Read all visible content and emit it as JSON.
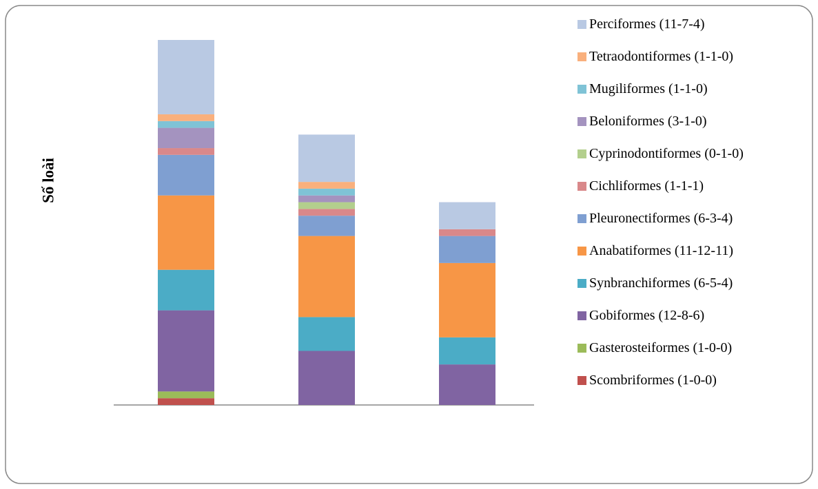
{
  "chart_data": {
    "type": "stacked-bar",
    "ylabel": "Số loài",
    "categories": [
      null,
      null,
      null
    ],
    "series": [
      {
        "name": "Scombriformes (1-0-0)",
        "color": "#c0504d",
        "values": [
          1,
          0,
          0
        ]
      },
      {
        "name": "Gasterosteiformes (1-0-0)",
        "color": "#9bbb59",
        "values": [
          1,
          0,
          0
        ]
      },
      {
        "name": "Gobiformes (12-8-6)",
        "color": "#8064a2",
        "values": [
          12,
          8,
          6
        ]
      },
      {
        "name": "Synbranchiformes (6-5-4)",
        "color": "#4bacc6",
        "values": [
          6,
          5,
          4
        ]
      },
      {
        "name": "Anabatiformes (11-12-11)",
        "color": "#f79646",
        "values": [
          11,
          12,
          11
        ]
      },
      {
        "name": "Pleuronectiformes (6-3-4)",
        "color": "#7f9fd1",
        "values": [
          6,
          3,
          4
        ]
      },
      {
        "name": "Cichliformes (1-1-1)",
        "color": "#d9888a",
        "values": [
          1,
          1,
          1
        ]
      },
      {
        "name": "Cyprinodontiformes (0-1-0)",
        "color": "#b3cf8d",
        "values": [
          0,
          1,
          0
        ]
      },
      {
        "name": "Beloniformes (3-1-0)",
        "color": "#a493bf",
        "values": [
          3,
          1,
          0
        ]
      },
      {
        "name": "Mugiliformes (1-1-0)",
        "color": "#7fc3d6",
        "values": [
          1,
          1,
          0
        ]
      },
      {
        "name": "Tetraodontiformes (1-1-0)",
        "color": "#f9b07d",
        "values": [
          1,
          1,
          0
        ]
      },
      {
        "name": "Perciformes (11-7-4)",
        "color": "#b9c9e3",
        "values": [
          11,
          7,
          4
        ]
      }
    ]
  }
}
